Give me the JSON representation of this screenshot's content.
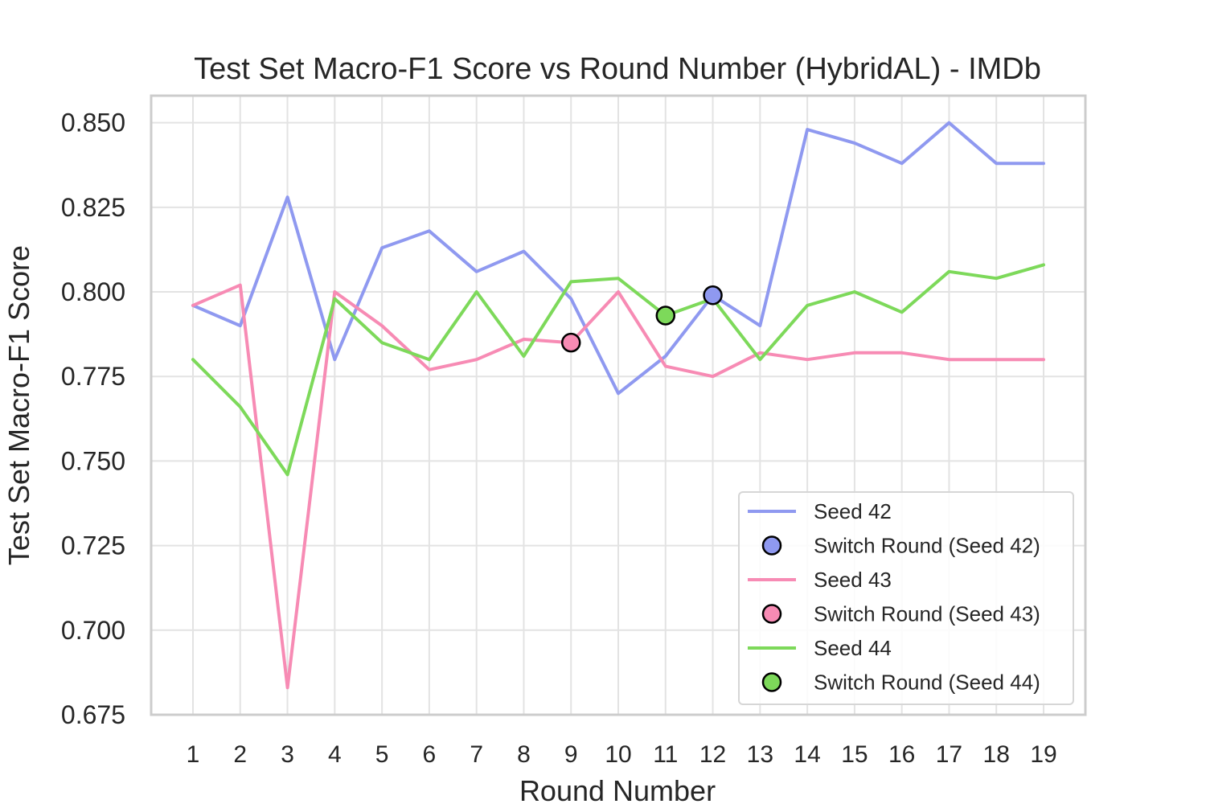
{
  "chart_data": {
    "type": "line",
    "title": "Test Set Macro-F1 Score vs Round Number (HybridAL) - IMDb",
    "xlabel": "Round Number",
    "ylabel": "Test Set Macro-F1 Score",
    "x": [
      1,
      2,
      3,
      4,
      5,
      6,
      7,
      8,
      9,
      10,
      11,
      12,
      13,
      14,
      15,
      16,
      17,
      18,
      19
    ],
    "ylim": [
      0.675,
      0.858
    ],
    "yticks": [
      0.675,
      0.7,
      0.725,
      0.75,
      0.775,
      0.8,
      0.825,
      0.85
    ],
    "ytick_labels": [
      "0.675",
      "0.700",
      "0.725",
      "0.750",
      "0.775",
      "0.800",
      "0.825",
      "0.850"
    ],
    "grid": true,
    "legend_position": "lower-right",
    "series": [
      {
        "name": "Seed 42",
        "color": "#8f99f0",
        "values": [
          0.796,
          0.79,
          0.828,
          0.78,
          0.813,
          0.818,
          0.806,
          0.812,
          0.798,
          0.77,
          0.781,
          0.799,
          0.79,
          0.848,
          0.844,
          0.838,
          0.85,
          0.838,
          0.838
        ],
        "switch_label": "Switch Round (Seed 42)",
        "switch_round": 12,
        "switch_value": 0.799
      },
      {
        "name": "Seed 43",
        "color": "#f78bb4",
        "values": [
          0.796,
          0.802,
          0.683,
          0.8,
          0.79,
          0.777,
          0.78,
          0.786,
          0.785,
          0.8,
          0.778,
          0.775,
          0.782,
          0.78,
          0.782,
          0.782,
          0.78,
          0.78,
          0.78
        ],
        "switch_label": "Switch Round (Seed 43)",
        "switch_round": 9,
        "switch_value": 0.785
      },
      {
        "name": "Seed 44",
        "color": "#7dd95a",
        "values": [
          0.78,
          0.766,
          0.746,
          0.798,
          0.785,
          0.78,
          0.8,
          0.781,
          0.803,
          0.804,
          0.793,
          0.798,
          0.78,
          0.796,
          0.8,
          0.794,
          0.806,
          0.804,
          0.808
        ],
        "switch_label": "Switch Round (Seed 44)",
        "switch_round": 11,
        "switch_value": 0.793
      }
    ]
  }
}
